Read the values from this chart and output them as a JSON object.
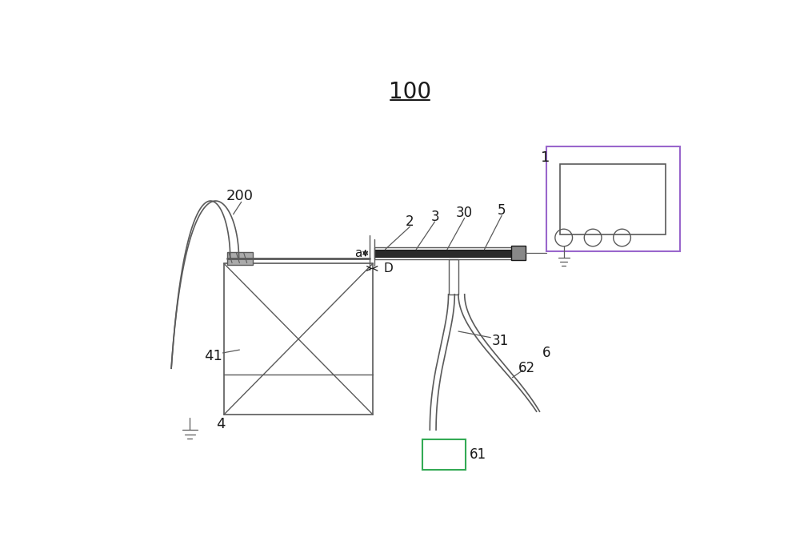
{
  "bg_color": "#ffffff",
  "lc": "#5a5a5a",
  "dc": "#1a1a1a",
  "purple": "#9966cc",
  "green": "#33aa55",
  "gray_fill": "#888888",
  "dark_fill": "#2a2a2a",
  "med_fill": "#aaaaaa",
  "title": "100",
  "label_fs": 13,
  "small_fs": 11
}
